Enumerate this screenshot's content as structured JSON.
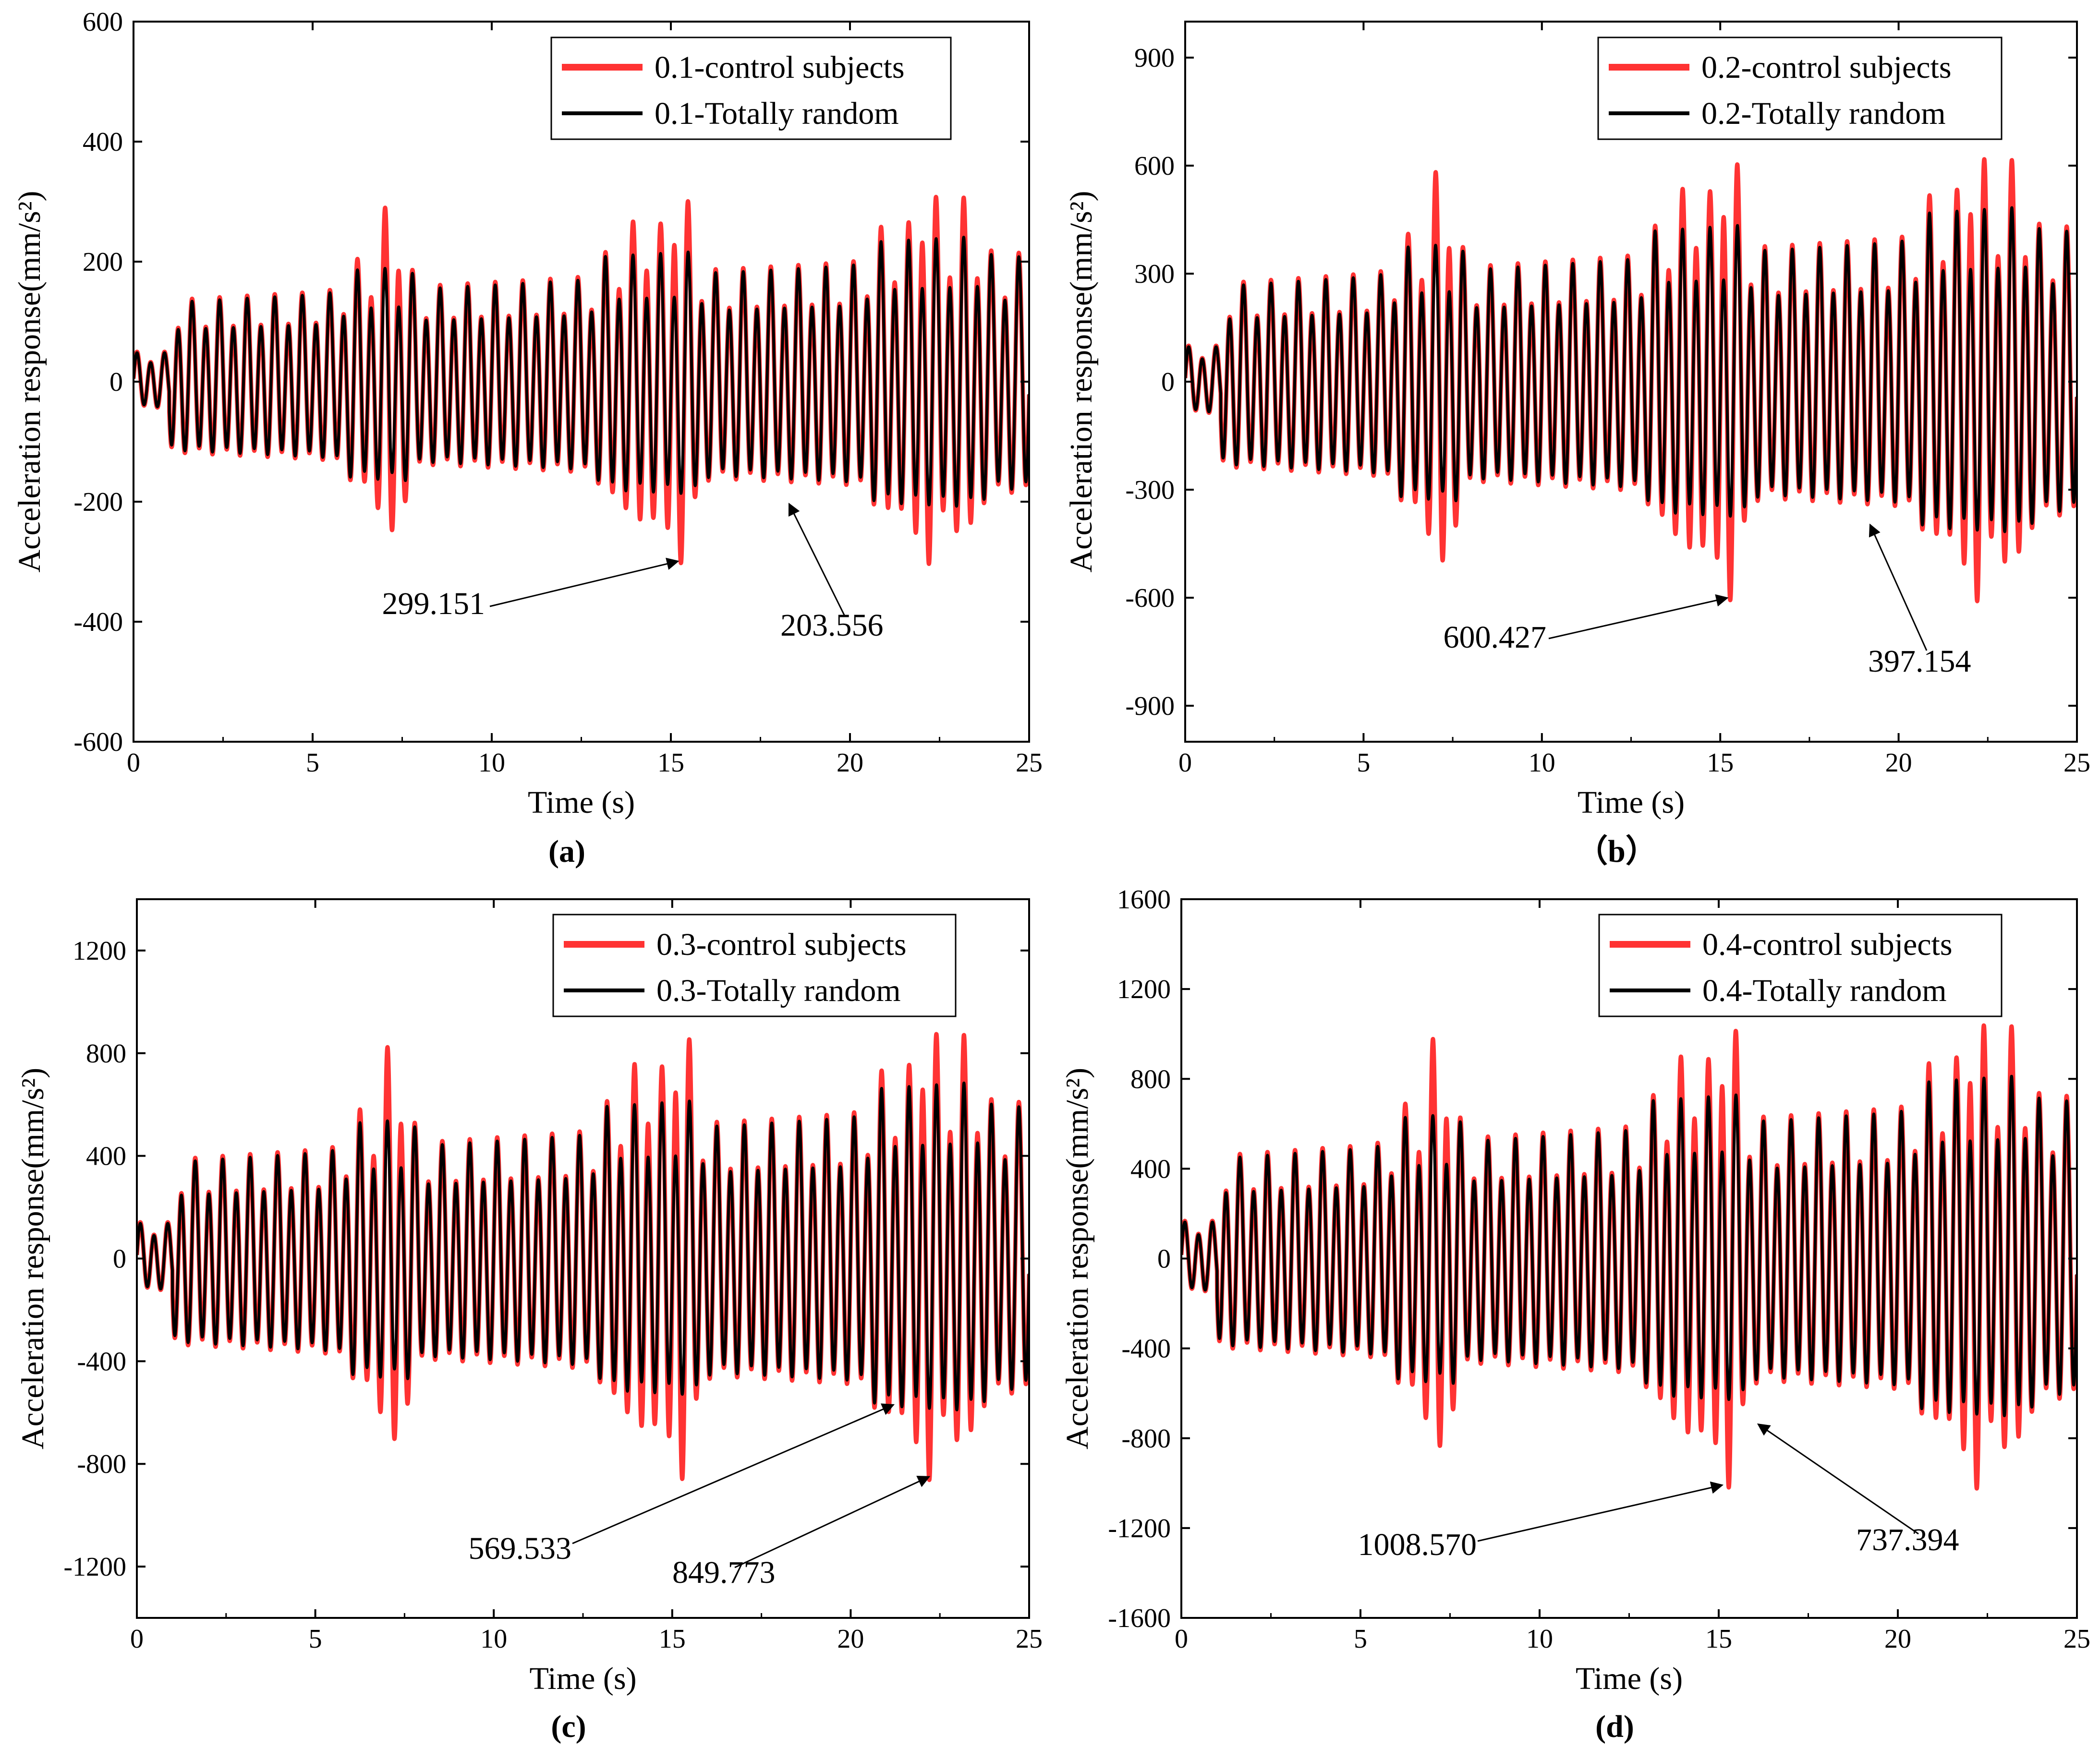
{
  "chart_data": [
    {
      "type": "line",
      "panel_label": "(a)",
      "xlabel": "Time (s)",
      "ylabel": "Acceleration response(mm/s²)",
      "xlim": [
        0,
        25
      ],
      "ylim": [
        -600,
        600
      ],
      "xticks": [
        0,
        5,
        10,
        15,
        20,
        25
      ],
      "yticks": [
        -600,
        -400,
        -200,
        0,
        200,
        400,
        600
      ],
      "legend_position": "top-right",
      "series": [
        {
          "name": "0.1-control subjects",
          "color": "#ff3333",
          "peak": 299.151
        },
        {
          "name": "0.1-Totally random",
          "color": "#000000",
          "peak": 203.556
        }
      ],
      "annotations": [
        {
          "text": "299.151",
          "at": [
            15.2,
            -299.151
          ]
        },
        {
          "text": "203.556",
          "at": [
            18.3,
            -203.556
          ]
        }
      ]
    },
    {
      "type": "line",
      "panel_label": "（b）",
      "xlabel": "Time (s)",
      "ylabel": "Acceleration response(mm/s²)",
      "xlim": [
        0,
        25
      ],
      "ylim": [
        -1000,
        1000
      ],
      "xticks": [
        0,
        5,
        10,
        15,
        20,
        25
      ],
      "yticks": [
        -900,
        -600,
        -300,
        0,
        300,
        600,
        900
      ],
      "legend_position": "top-right",
      "series": [
        {
          "name": "0.2-control subjects",
          "color": "#ff3333",
          "peak": 600.427
        },
        {
          "name": "0.2-Totally random",
          "color": "#000000",
          "peak": 397.154
        }
      ],
      "annotations": [
        {
          "text": "600.427",
          "at": [
            15.2,
            -600.427
          ]
        },
        {
          "text": "397.154",
          "at": [
            19.2,
            -397.154
          ]
        }
      ]
    },
    {
      "type": "line",
      "panel_label": "(c)",
      "xlabel": "Time (s)",
      "ylabel": "Acceleration response(mm/s²)",
      "xlim": [
        0,
        25
      ],
      "ylim": [
        -1400,
        1400
      ],
      "xticks": [
        0,
        5,
        10,
        15,
        20,
        25
      ],
      "yticks": [
        -1200,
        -800,
        -400,
        0,
        400,
        800,
        1200
      ],
      "legend_position": "top-right",
      "series": [
        {
          "name": "0.3-control subjects",
          "color": "#ff3333",
          "peak": 849.773
        },
        {
          "name": "0.3-Totally random",
          "color": "#000000",
          "peak": 569.533
        }
      ],
      "annotations": [
        {
          "text": "569.533",
          "at": [
            21.2,
            -569.533
          ]
        },
        {
          "text": "849.773",
          "at": [
            22.2,
            -849.773
          ]
        }
      ]
    },
    {
      "type": "line",
      "panel_label": "(d)",
      "xlabel": "Time (s)",
      "ylabel": "Acceleration response(mm/s²)",
      "xlim": [
        0,
        25
      ],
      "ylim": [
        -1600,
        1600
      ],
      "xticks": [
        0,
        5,
        10,
        15,
        20,
        25
      ],
      "yticks": [
        -1600,
        -1200,
        -800,
        -400,
        0,
        400,
        800,
        1200,
        1600
      ],
      "legend_position": "top-right",
      "series": [
        {
          "name": "0.4-control subjects",
          "color": "#ff3333",
          "peak": 1008.57
        },
        {
          "name": "0.4-Totally random",
          "color": "#000000",
          "peak": 737.394
        }
      ],
      "annotations": [
        {
          "text": "1008.570",
          "at": [
            15.1,
            -1008.57
          ]
        },
        {
          "text": "737.394",
          "at": [
            16.1,
            -737.394
          ]
        }
      ]
    }
  ]
}
